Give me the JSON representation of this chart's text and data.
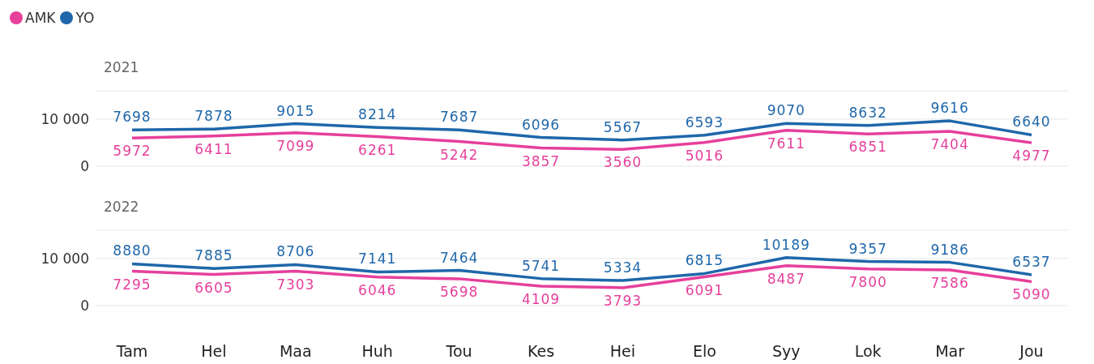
{
  "chart_data": [
    {
      "type": "line",
      "title": "2021",
      "categories": [
        null,
        null,
        null,
        null,
        null,
        null,
        null,
        null,
        null,
        null,
        null,
        null
      ],
      "series": [
        {
          "name": "AMK",
          "color": "#e6409b",
          "values": [
            5972,
            6411,
            7099,
            6261,
            5242,
            3857,
            3560,
            5016,
            7611,
            6851,
            7404,
            4977
          ]
        },
        {
          "name": "YO",
          "color": "#1f67aa",
          "values": [
            7698,
            7878,
            9015,
            8214,
            7687,
            6096,
            5567,
            6593,
            9070,
            8632,
            9616,
            6640
          ]
        }
      ],
      "ylim": [
        0,
        16000
      ],
      "yticks": [
        0,
        {
          "value": 10000,
          "label": "10 000"
        }
      ],
      "grid": "y",
      "legend": "top left",
      "data_labels": true,
      "marker": "none"
    },
    {
      "type": "line",
      "title": "2022",
      "categories": [
        "Tam",
        "Hel",
        "Maa",
        "Huh",
        "Tou",
        "Kes",
        "Hei",
        "Elo",
        "Syy",
        "Lok",
        "Mar",
        "Jou"
      ],
      "series": [
        {
          "name": "AMK",
          "color": "#e6409b",
          "values": [
            7295,
            6605,
            7303,
            6046,
            5698,
            4109,
            3793,
            6091,
            8487,
            7800,
            7586,
            5090
          ]
        },
        {
          "name": "YO",
          "color": "#1f67aa",
          "values": [
            8880,
            7885,
            8706,
            7141,
            7464,
            5741,
            5334,
            6815,
            10189,
            9357,
            9186,
            6537
          ]
        }
      ],
      "ylim": [
        0,
        16000
      ],
      "yticks": [
        0,
        {
          "value": 10000,
          "label": "10 000"
        }
      ],
      "grid": "y",
      "data_labels": true,
      "marker": "none"
    }
  ]
}
